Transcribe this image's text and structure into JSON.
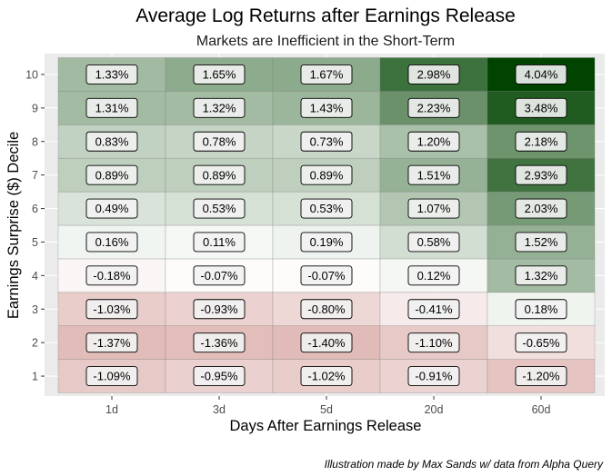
{
  "chart_data": {
    "type": "heatmap",
    "title": "Average Log Returns after Earnings Release",
    "subtitle": "Markets are Inefficient in the Short-Term",
    "xlabel": "Days After Earnings Release",
    "ylabel": "Earnings Surprise ($) Decile",
    "caption": "Illustration made by Max Sands w/ data from Alpha Query",
    "x_categories": [
      "1d",
      "3d",
      "5d",
      "20d",
      "60d"
    ],
    "y_categories": [
      "1",
      "2",
      "3",
      "4",
      "5",
      "6",
      "7",
      "8",
      "9",
      "10"
    ],
    "values": [
      [
        -1.09,
        -0.95,
        -1.02,
        -0.91,
        -1.2
      ],
      [
        -1.37,
        -1.36,
        -1.4,
        -1.1,
        -0.65
      ],
      [
        -1.03,
        -0.93,
        -0.8,
        -0.41,
        0.18
      ],
      [
        -0.18,
        -0.07,
        -0.07,
        0.12,
        1.32
      ],
      [
        0.16,
        0.11,
        0.19,
        0.58,
        1.52
      ],
      [
        0.49,
        0.53,
        0.53,
        1.07,
        2.03
      ],
      [
        0.89,
        0.89,
        0.89,
        1.51,
        2.93
      ],
      [
        0.83,
        0.78,
        0.73,
        1.2,
        2.18
      ],
      [
        1.31,
        1.32,
        1.43,
        2.23,
        3.48
      ],
      [
        1.33,
        1.65,
        1.67,
        2.98,
        4.04
      ]
    ],
    "labels": [
      [
        "-1.09%",
        "-0.95%",
        "-1.02%",
        "-0.91%",
        "-1.20%"
      ],
      [
        "-1.37%",
        "-1.36%",
        "-1.40%",
        "-1.10%",
        "-0.65%"
      ],
      [
        "-1.03%",
        "-0.93%",
        "-0.80%",
        "-0.41%",
        "0.18%"
      ],
      [
        "-0.18%",
        "-0.07%",
        "-0.07%",
        "0.12%",
        "1.32%"
      ],
      [
        "0.16%",
        "0.11%",
        "0.19%",
        "0.58%",
        "1.52%"
      ],
      [
        "0.49%",
        "0.53%",
        "0.53%",
        "1.07%",
        "2.03%"
      ],
      [
        "0.89%",
        "0.89%",
        "0.89%",
        "1.51%",
        "2.93%"
      ],
      [
        "0.83%",
        "0.78%",
        "0.73%",
        "1.20%",
        "2.18%"
      ],
      [
        "1.31%",
        "1.32%",
        "1.43%",
        "2.23%",
        "3.48%"
      ],
      [
        "1.33%",
        "1.65%",
        "1.67%",
        "2.98%",
        "4.04%"
      ]
    ],
    "color_scale": {
      "low": "#c98580",
      "mid": "#ffffff",
      "high": "#004400",
      "low_value": -2.5,
      "mid_value": 0,
      "high_value": 4.04
    },
    "panel_background": "#ebebeb",
    "grid": true,
    "legend": "none"
  }
}
